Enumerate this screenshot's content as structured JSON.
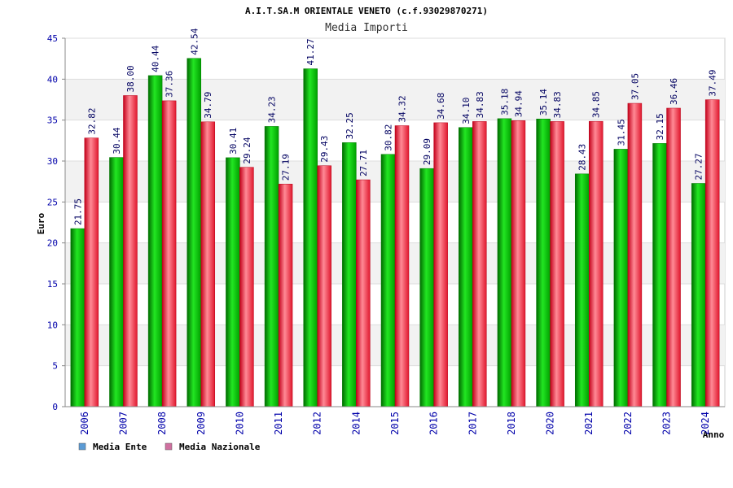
{
  "chart_data": {
    "type": "bar",
    "title": "A.I.T.SA.M ORIENTALE VENETO (c.f.93029870271)",
    "subtitle": "Media Importi",
    "ylabel": "Euro",
    "xlabel": "Anno",
    "ylim": [
      0,
      45
    ],
    "yticks": [
      0,
      5,
      10,
      15,
      20,
      25,
      30,
      35,
      40,
      45
    ],
    "grid": true,
    "legend_position": "bottom-left",
    "categories": [
      "2006",
      "2007",
      "2008",
      "2009",
      "2010",
      "2011",
      "2012",
      "2014",
      "2015",
      "2016",
      "2017",
      "2018",
      "2020",
      "2021",
      "2022",
      "2023",
      "2024"
    ],
    "series": [
      {
        "name": "Media Ente",
        "color": "#00b000",
        "values": [
          21.75,
          30.44,
          40.44,
          42.54,
          30.41,
          34.23,
          41.27,
          32.25,
          30.82,
          29.09,
          34.1,
          35.18,
          35.14,
          28.43,
          31.45,
          32.15,
          27.27
        ],
        "labels": [
          "21.75",
          "30.44",
          "40.44",
          "42.54",
          "30.41",
          "34.23",
          "41.27",
          "32.25",
          "30.82",
          "29.09",
          "34.10",
          "35.18",
          "35.14",
          "28.43",
          "31.45",
          "32.15",
          "27.27"
        ]
      },
      {
        "name": "Media Nazionale",
        "color": "#e8283c",
        "values": [
          32.82,
          38.0,
          37.36,
          34.79,
          29.24,
          27.19,
          29.43,
          27.71,
          34.32,
          34.68,
          34.83,
          34.94,
          34.83,
          34.85,
          37.05,
          36.46,
          37.49
        ],
        "labels": [
          "32.82",
          "38.00",
          "37.36",
          "34.79",
          "29.24",
          "27.19",
          "29.43",
          "27.71",
          "34.32",
          "34.68",
          "34.83",
          "34.94",
          "34.83",
          "34.85",
          "37.05",
          "36.46",
          "37.49"
        ]
      }
    ],
    "legend_colors": [
      "#5b9bd5",
      "#d070a0"
    ]
  }
}
